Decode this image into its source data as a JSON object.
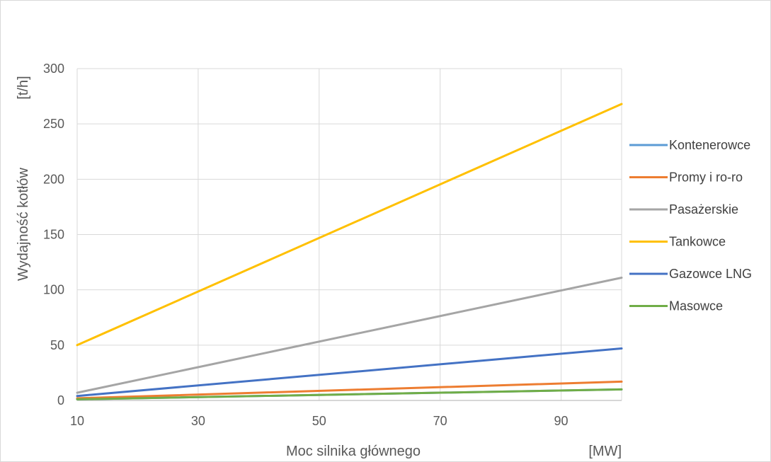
{
  "chart_data": {
    "type": "line",
    "xlabel": "Moc silnika głównego",
    "xunit": "[MW]",
    "ylabel": "Wydajność kotłów",
    "yunit": "[t/h]",
    "xlim": [
      10,
      100
    ],
    "ylim": [
      0,
      300
    ],
    "x_ticks": [
      10,
      30,
      50,
      70,
      90
    ],
    "y_ticks": [
      0,
      50,
      100,
      150,
      200,
      250,
      300
    ],
    "grid": true,
    "legend_position": "right",
    "series": [
      {
        "name": "Kontenerowce",
        "color": "#5b9bd5",
        "x": [
          10,
          100
        ],
        "values": [
          1,
          10
        ]
      },
      {
        "name": "Promy i ro-ro",
        "color": "#ed7d31",
        "x": [
          10,
          100
        ],
        "values": [
          2,
          17
        ]
      },
      {
        "name": "Pasażerskie",
        "color": "#a5a5a5",
        "x": [
          10,
          100
        ],
        "values": [
          7,
          111
        ]
      },
      {
        "name": "Tankowce",
        "color": "#ffc000",
        "x": [
          10,
          100
        ],
        "values": [
          50,
          268
        ]
      },
      {
        "name": "Gazowce LNG",
        "color": "#4472c4",
        "x": [
          10,
          100
        ],
        "values": [
          4,
          47
        ]
      },
      {
        "name": "Masowce",
        "color": "#70ad47",
        "x": [
          10,
          100
        ],
        "values": [
          1,
          10
        ]
      }
    ]
  }
}
